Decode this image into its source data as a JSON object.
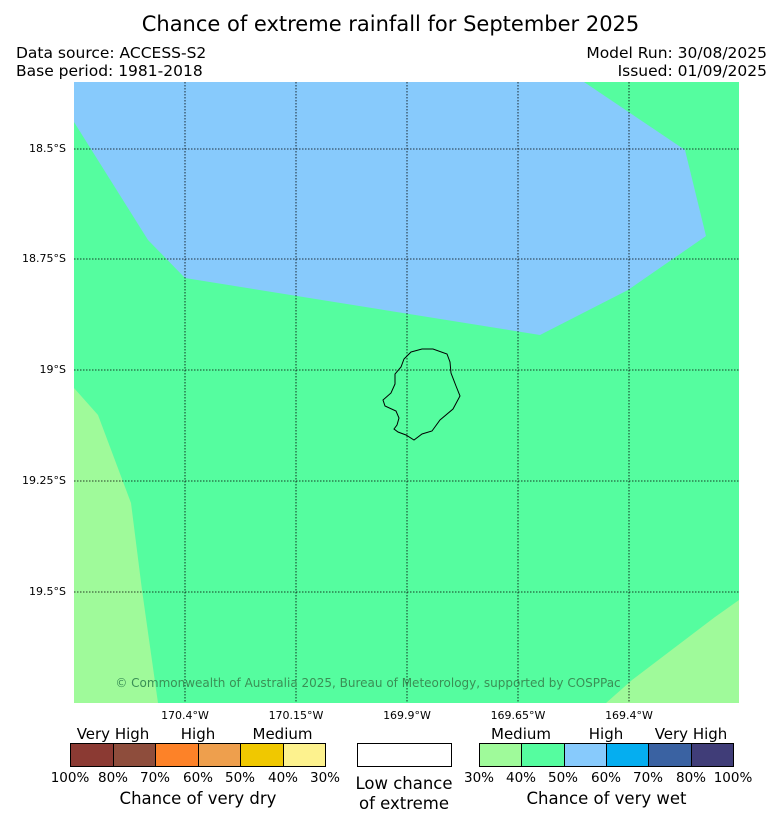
{
  "title": "Chance of extreme rainfall for September 2025",
  "header": {
    "data_source": "Data source: ACCESS-S2",
    "base_period": "Base period: 1981-2018",
    "model_run": "Model Run: 30/08/2025",
    "issued": "Issued: 01/09/2025"
  },
  "map": {
    "lat_labels": [
      "18.5°S",
      "18.75°S",
      "19°S",
      "19.25°S",
      "19.5°S"
    ],
    "lon_labels": [
      "170.4°W",
      "170.15°W",
      "169.9°W",
      "169.65°W",
      "169.4°W"
    ],
    "copyright": "© Commonwealth of Australia 2025, Bureau of Meteorology, supported by COSPPac",
    "region_colors": {
      "wet_medium_light": "#9ffa9a",
      "wet_medium": "#55fd9f",
      "wet_high": "#87cafc"
    }
  },
  "legend": {
    "dry": {
      "categories": [
        "Very High",
        "High",
        "Medium"
      ],
      "colors": [
        "#8b3a33",
        "#8e4d3c",
        "#fd8228",
        "#ee9f4d",
        "#f0c800",
        "#fdf28e"
      ],
      "ticks": [
        "100%",
        "80%",
        "70%",
        "60%",
        "50%",
        "40%",
        "30%"
      ],
      "caption": "Chance of very dry"
    },
    "neutral": {
      "color": "#ffffff",
      "caption_line1": "Low chance",
      "caption_line2": "of extreme"
    },
    "wet": {
      "categories": [
        "Medium",
        "High",
        "Very High"
      ],
      "colors": [
        "#9ffa9a",
        "#55fd9f",
        "#87cafc",
        "#05aef0",
        "#3a62a2",
        "#403d78"
      ],
      "ticks": [
        "30%",
        "40%",
        "50%",
        "60%",
        "70%",
        "80%",
        "100%"
      ],
      "caption": "Chance of very wet"
    }
  }
}
